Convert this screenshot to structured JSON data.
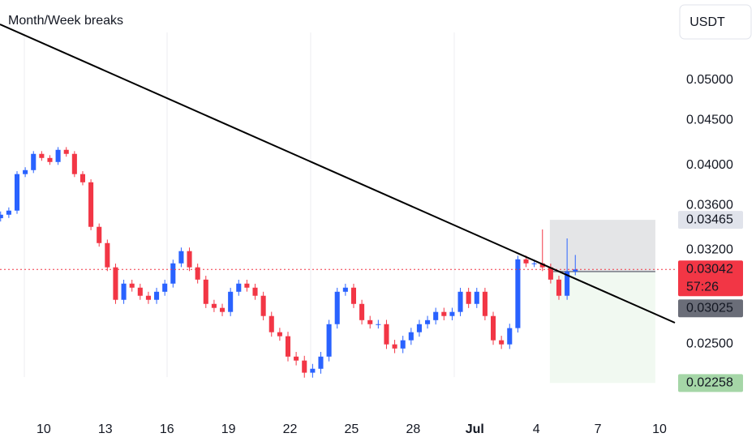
{
  "chart_data": {
    "type": "candlestick",
    "title": "Month/Week breaks",
    "currency": "USDT",
    "log_scale": true,
    "up_color": "#2962ff",
    "down_color": "#f23645",
    "x": [
      -2.1,
      -1.7,
      -1.3,
      -0.9,
      -0.5,
      -0.1,
      0.3,
      0.7,
      1.1,
      1.5,
      1.9,
      2.3,
      2.7,
      3.1,
      3.5,
      3.9,
      4.3,
      4.7,
      5.1,
      5.5,
      5.9,
      6.3,
      6.7,
      7.1,
      7.5,
      7.9,
      8.3,
      8.7,
      9.1,
      9.5,
      9.9,
      10.3,
      10.7,
      11.1,
      11.5,
      11.9,
      12.3,
      12.7,
      13.1,
      13.5,
      13.9,
      14.3,
      14.7,
      15.1,
      15.5,
      15.9,
      16.3,
      16.7,
      17.1,
      17.5,
      17.9,
      18.3,
      18.7,
      19.1,
      19.5,
      19.9,
      20.3,
      20.7,
      21.1,
      21.5,
      21.9,
      22.3,
      22.7,
      23.1,
      23.5,
      23.9,
      24.3,
      24.7,
      25.1,
      25.5,
      25.9
    ],
    "open": [
      0.0348,
      0.03512,
      0.0355,
      0.03907,
      0.03948,
      0.0412,
      0.04076,
      0.04033,
      0.04164,
      0.0412,
      0.03907,
      0.03824,
      0.03402,
      0.0326,
      0.03059,
      0.02809,
      0.02931,
      0.029,
      0.02839,
      0.02809,
      0.02869,
      0.02931,
      0.03091,
      0.03192,
      0.03059,
      0.02962,
      0.02779,
      0.0275,
      0.02721,
      0.02869,
      0.02931,
      0.029,
      0.02839,
      0.02692,
      0.0258,
      0.02553,
      0.0242,
      0.02395,
      0.0232,
      0.02344,
      0.0242,
      0.02635,
      0.02869,
      0.029,
      0.02779,
      0.02663,
      0.02635,
      0.02635,
      0.02499,
      0.02472,
      0.02526,
      0.0258,
      0.02635,
      0.02663,
      0.02721,
      0.02692,
      0.02721,
      0.02869,
      0.02779,
      0.02869,
      0.02692,
      0.02526,
      0.02499,
      0.02608,
      0.03124,
      0.03091,
      0.03091,
      0.03059,
      0.02962,
      0.02839,
      0.03026
    ],
    "high": [
      0.03542,
      0.0358,
      0.03937,
      0.03978,
      0.0415,
      0.0415,
      0.04106,
      0.04194,
      0.04194,
      0.0415,
      0.03937,
      0.03854,
      0.03432,
      0.0329,
      0.03089,
      0.02961,
      0.02961,
      0.0293,
      0.02869,
      0.02899,
      0.02961,
      0.03121,
      0.03222,
      0.03222,
      0.03089,
      0.02992,
      0.02809,
      0.0278,
      0.02899,
      0.02961,
      0.02961,
      0.0293,
      0.02869,
      0.02722,
      0.0261,
      0.02583,
      0.0245,
      0.02425,
      0.02374,
      0.0245,
      0.02665,
      0.02899,
      0.0293,
      0.0293,
      0.02809,
      0.02693,
      0.02665,
      0.02665,
      0.02529,
      0.02556,
      0.0261,
      0.02665,
      0.02693,
      0.02751,
      0.02751,
      0.02751,
      0.02899,
      0.02899,
      0.02899,
      0.02899,
      0.02722,
      0.02556,
      0.02638,
      0.03154,
      0.03154,
      0.03121,
      0.03379,
      0.03089,
      0.02992,
      0.033,
      0.0316
    ],
    "low": [
      0.0345,
      0.03482,
      0.0352,
      0.03877,
      0.03918,
      0.04046,
      0.04003,
      0.04003,
      0.0409,
      0.03877,
      0.03794,
      0.03372,
      0.0323,
      0.03029,
      0.02779,
      0.02779,
      0.0287,
      0.02809,
      0.02779,
      0.02779,
      0.02839,
      0.02901,
      0.03061,
      0.03029,
      0.02932,
      0.02749,
      0.0272,
      0.02691,
      0.02691,
      0.02839,
      0.0287,
      0.02809,
      0.02662,
      0.0255,
      0.02523,
      0.0239,
      0.02365,
      0.0229,
      0.0229,
      0.02314,
      0.0239,
      0.02605,
      0.02839,
      0.02749,
      0.02633,
      0.02605,
      0.02605,
      0.02469,
      0.02442,
      0.02442,
      0.02496,
      0.0255,
      0.02605,
      0.02633,
      0.02662,
      0.02662,
      0.02691,
      0.02749,
      0.02749,
      0.02662,
      0.02496,
      0.02469,
      0.02469,
      0.02578,
      0.03061,
      0.03061,
      0.03029,
      0.02932,
      0.02809,
      0.02809,
      0.02996
    ],
    "close": [
      0.03512,
      0.0355,
      0.03907,
      0.03948,
      0.0412,
      0.04076,
      0.04033,
      0.04164,
      0.0412,
      0.03907,
      0.03824,
      0.03402,
      0.0326,
      0.03059,
      0.02809,
      0.02931,
      0.029,
      0.02839,
      0.02809,
      0.02869,
      0.02931,
      0.03091,
      0.03192,
      0.03059,
      0.02962,
      0.02779,
      0.0275,
      0.02721,
      0.02869,
      0.02931,
      0.029,
      0.02839,
      0.02692,
      0.0258,
      0.02553,
      0.0242,
      0.02395,
      0.0232,
      0.02344,
      0.0242,
      0.02635,
      0.02869,
      0.029,
      0.02779,
      0.02663,
      0.02635,
      0.02635,
      0.02499,
      0.02472,
      0.02526,
      0.0258,
      0.02635,
      0.02663,
      0.02721,
      0.02692,
      0.02721,
      0.02869,
      0.02779,
      0.02869,
      0.02692,
      0.02526,
      0.02499,
      0.02608,
      0.03124,
      0.03091,
      0.03091,
      0.03059,
      0.02962,
      0.02839,
      0.03026,
      0.03042
    ],
    "xlim": [
      -2.13,
      30.87
    ],
    "xticks": [
      {
        "value": 0,
        "label": "10"
      },
      {
        "value": 3,
        "label": "13"
      },
      {
        "value": 6,
        "label": "16"
      },
      {
        "value": 9,
        "label": "19"
      },
      {
        "value": 12,
        "label": "22"
      },
      {
        "value": 15,
        "label": "25"
      },
      {
        "value": 18,
        "label": "28"
      },
      {
        "value": 21,
        "label": "Jul"
      },
      {
        "value": 24,
        "label": "4"
      },
      {
        "value": 27,
        "label": "7"
      },
      {
        "value": 30,
        "label": "10"
      }
    ],
    "ylim": [
      0.02084,
      0.0617
    ],
    "yticks": [
      {
        "value": 0.05,
        "label": "0.05000"
      },
      {
        "value": 0.045,
        "label": "0.04500"
      },
      {
        "value": 0.04,
        "label": "0.04000"
      },
      {
        "value": 0.036,
        "label": "0.03600"
      },
      {
        "value": 0.032,
        "label": "0.03200"
      },
      {
        "value": 0.025,
        "label": "0.02500"
      }
    ],
    "last_price": 0.03042,
    "countdown": "57:26",
    "position": {
      "stop": 0.03465,
      "entry": 0.03025,
      "target": 0.02258,
      "start": 24.66,
      "end": 29.8
    }
  }
}
